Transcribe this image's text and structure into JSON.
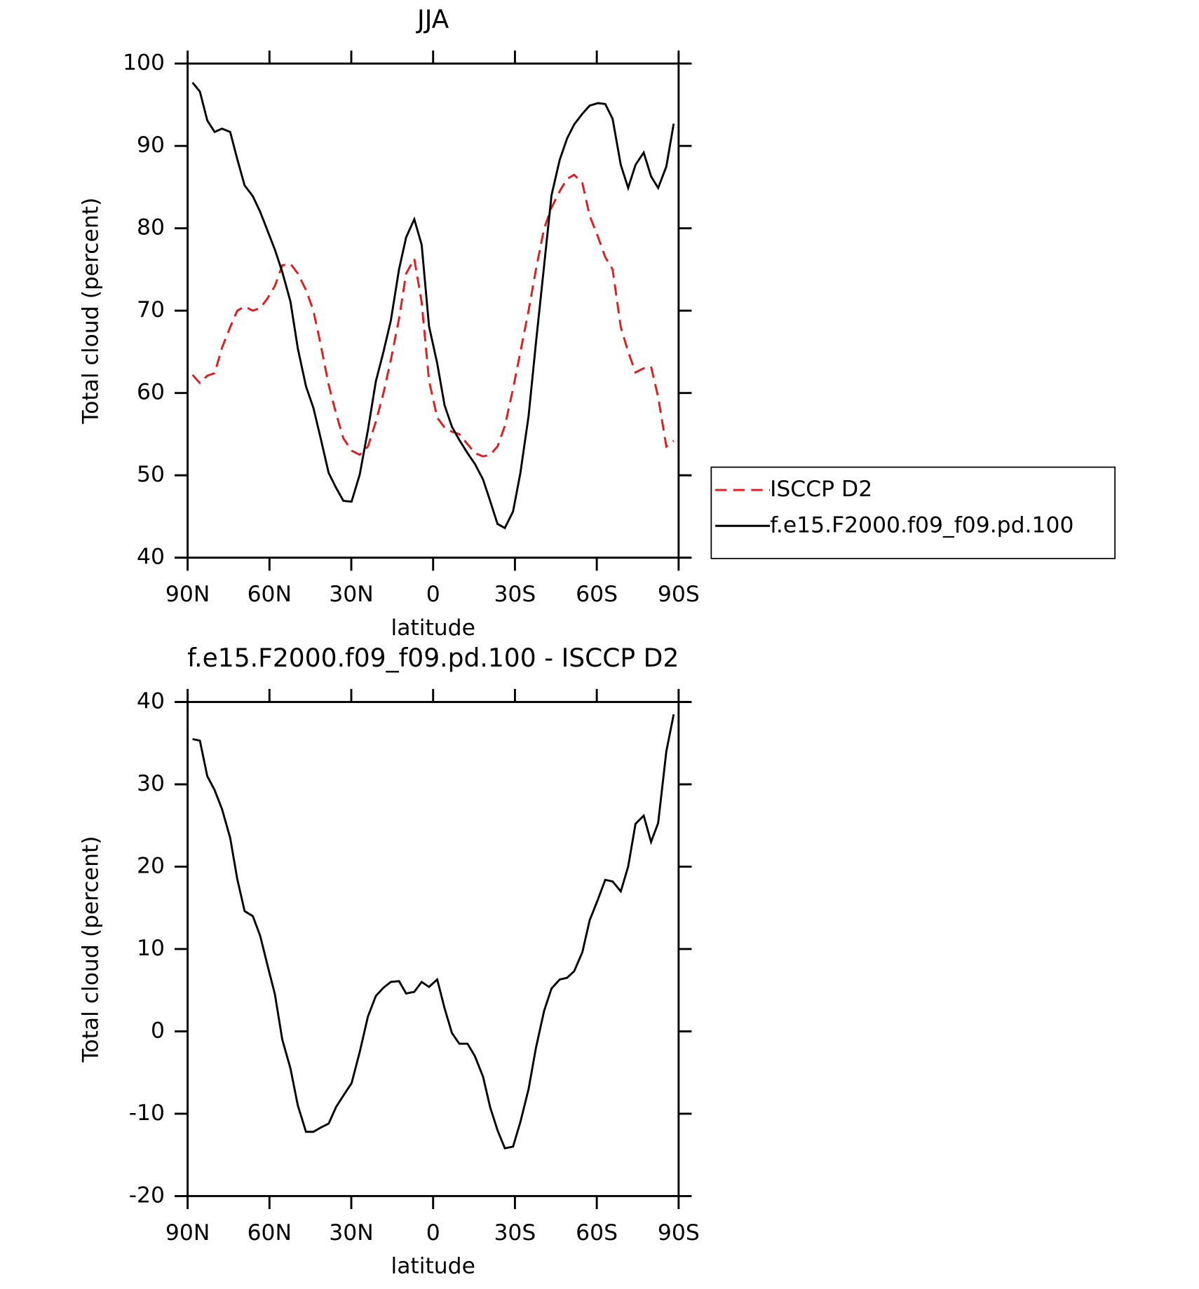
{
  "chart_data": [
    {
      "type": "line",
      "title": "JJA",
      "x_label": "latitude",
      "y_label": "Total cloud (percent)",
      "x": [
        88.2,
        85.5,
        82.8,
        80.1,
        77.4,
        74.4,
        71.8,
        69.1,
        66.1,
        63.4,
        60.7,
        58.0,
        55.3,
        52.3,
        49.6,
        46.6,
        43.9,
        41.3,
        38.3,
        35.6,
        32.9,
        29.9,
        26.9,
        23.9,
        21.0,
        18.2,
        15.5,
        12.5,
        9.9,
        6.9,
        4.2,
        1.5,
        -1.5,
        -4.2,
        -6.9,
        -9.6,
        -12.6,
        -15.3,
        -18.3,
        -20.9,
        -23.6,
        -26.3,
        -29.3,
        -32.0,
        -35.0,
        -37.7,
        -40.7,
        -43.4,
        -46.4,
        -49.1,
        -51.7,
        -54.7,
        -57.4,
        -60.4,
        -63.1,
        -65.8,
        -68.8,
        -71.5,
        -74.2,
        -77.2,
        -79.9,
        -82.5,
        -85.5,
        -88.2
      ],
      "series": [
        {
          "name": "ISCCP D2",
          "color": "#e41a1c",
          "dashed": true,
          "values": [
            62.2,
            61.2,
            62.1,
            62.4,
            65.5,
            68,
            70,
            70.5,
            70,
            70.3,
            71.5,
            73,
            75.5,
            75.7,
            74.5,
            72.5,
            70,
            66,
            61,
            57.5,
            54.5,
            53,
            52.5,
            53.5,
            56.5,
            60,
            64,
            69,
            74.5,
            76.3,
            71,
            61.5,
            57,
            55.8,
            55.3,
            55,
            53.8,
            52.7,
            52.3,
            52.5,
            53.5,
            56,
            60.5,
            65,
            70,
            75,
            80,
            82.5,
            84.5,
            86,
            86.5,
            85.5,
            81.5,
            79,
            76.5,
            75,
            68,
            65,
            62.5,
            63,
            63.2,
            59.5,
            53.5,
            54.2
          ]
        },
        {
          "name": "f.e15.F2000.f09_f09.pd.100",
          "color": "#000000",
          "dashed": false,
          "values": [
            97.7,
            96.6,
            93.1,
            91.7,
            92.1,
            91.7,
            88.4,
            85.2,
            83.9,
            82.0,
            79.7,
            77.4,
            74.7,
            71.1,
            65.4,
            60.8,
            58.2,
            54.6,
            50.3,
            48.5,
            46.9,
            46.8,
            50.1,
            55.5,
            61.4,
            65.0,
            68.8,
            75.0,
            78.9,
            81.1,
            78.0,
            68.1,
            63.6,
            58.5,
            55.9,
            54.3,
            52.7,
            51.4,
            49.5,
            46.9,
            44.1,
            43.6,
            45.6,
            50.3,
            57.2,
            66.1,
            75.5,
            84.0,
            88.3,
            90.9,
            92.6,
            93.9,
            94.9,
            95.2,
            95.1,
            93.3,
            87.7,
            84.9,
            87.7,
            89.2,
            86.3,
            84.9,
            87.5,
            92.7
          ]
        }
      ],
      "xlim": [
        90,
        -90
      ],
      "xticks": [
        {
          "value": 90,
          "label": "90N"
        },
        {
          "value": 60,
          "label": "60N"
        },
        {
          "value": 30,
          "label": "30N"
        },
        0,
        {
          "value": -30,
          "label": "30S"
        },
        {
          "value": -60,
          "label": "60S"
        },
        {
          "value": -90,
          "label": "90S"
        }
      ],
      "ylim": [
        40,
        100
      ],
      "yticks": [
        40,
        50,
        60,
        70,
        80,
        90,
        100
      ],
      "legend": "right"
    },
    {
      "type": "line",
      "title": "f.e15.F2000.f09_f09.pd.100 - ISCCP D2",
      "x_label": "latitude",
      "y_label": "Total cloud (percent)",
      "x": [
        88.2,
        85.5,
        82.8,
        80.1,
        77.4,
        74.4,
        71.8,
        69.1,
        66.1,
        63.4,
        60.7,
        58.0,
        55.3,
        52.3,
        49.6,
        46.6,
        43.9,
        41.3,
        38.3,
        35.6,
        32.9,
        29.9,
        26.9,
        23.9,
        21.0,
        18.2,
        15.5,
        12.5,
        9.9,
        6.9,
        4.2,
        1.5,
        -1.5,
        -4.2,
        -6.9,
        -9.6,
        -12.6,
        -15.3,
        -18.3,
        -20.9,
        -23.6,
        -26.3,
        -29.3,
        -32.0,
        -35.0,
        -37.7,
        -40.7,
        -43.4,
        -46.4,
        -49.1,
        -51.7,
        -54.7,
        -57.4,
        -60.4,
        -63.1,
        -65.8,
        -68.8,
        -71.5,
        -74.2,
        -77.2,
        -79.9,
        -82.5,
        -85.5,
        -88.2
      ],
      "series": [
        {
          "color": "#000000",
          "dashed": false,
          "values": [
            35.5,
            35.3,
            31,
            29.3,
            27,
            23.5,
            18.5,
            14.6,
            14,
            11.6,
            8,
            4.5,
            -1,
            -4.5,
            -9,
            -12.2,
            -12.2,
            -11.7,
            -11.2,
            -9.2,
            -7.8,
            -6.3,
            -2.5,
            1.8,
            4.3,
            5.3,
            6,
            6.1,
            4.6,
            4.8,
            6,
            5.4,
            6.3,
            2.8,
            -0.2,
            -1.5,
            -1.5,
            -3,
            -5.5,
            -9.2,
            -12,
            -14.2,
            -14,
            -11,
            -7,
            -2,
            2.5,
            5.2,
            6.3,
            6.5,
            7.3,
            9.6,
            13.5,
            16,
            18.4,
            18.2,
            17,
            20,
            25.2,
            26.2,
            23,
            25.3,
            34,
            38.5
          ]
        }
      ],
      "xlim": [
        90,
        -90
      ],
      "xticks": [
        {
          "value": 90,
          "label": "90N"
        },
        {
          "value": 60,
          "label": "60N"
        },
        {
          "value": 30,
          "label": "30N"
        },
        0,
        {
          "value": -30,
          "label": "30S"
        },
        {
          "value": -60,
          "label": "60S"
        },
        {
          "value": -90,
          "label": "90S"
        }
      ],
      "ylim": [
        -20,
        40
      ],
      "yticks": [
        -20,
        -10,
        0,
        10,
        20,
        30,
        40
      ]
    }
  ]
}
